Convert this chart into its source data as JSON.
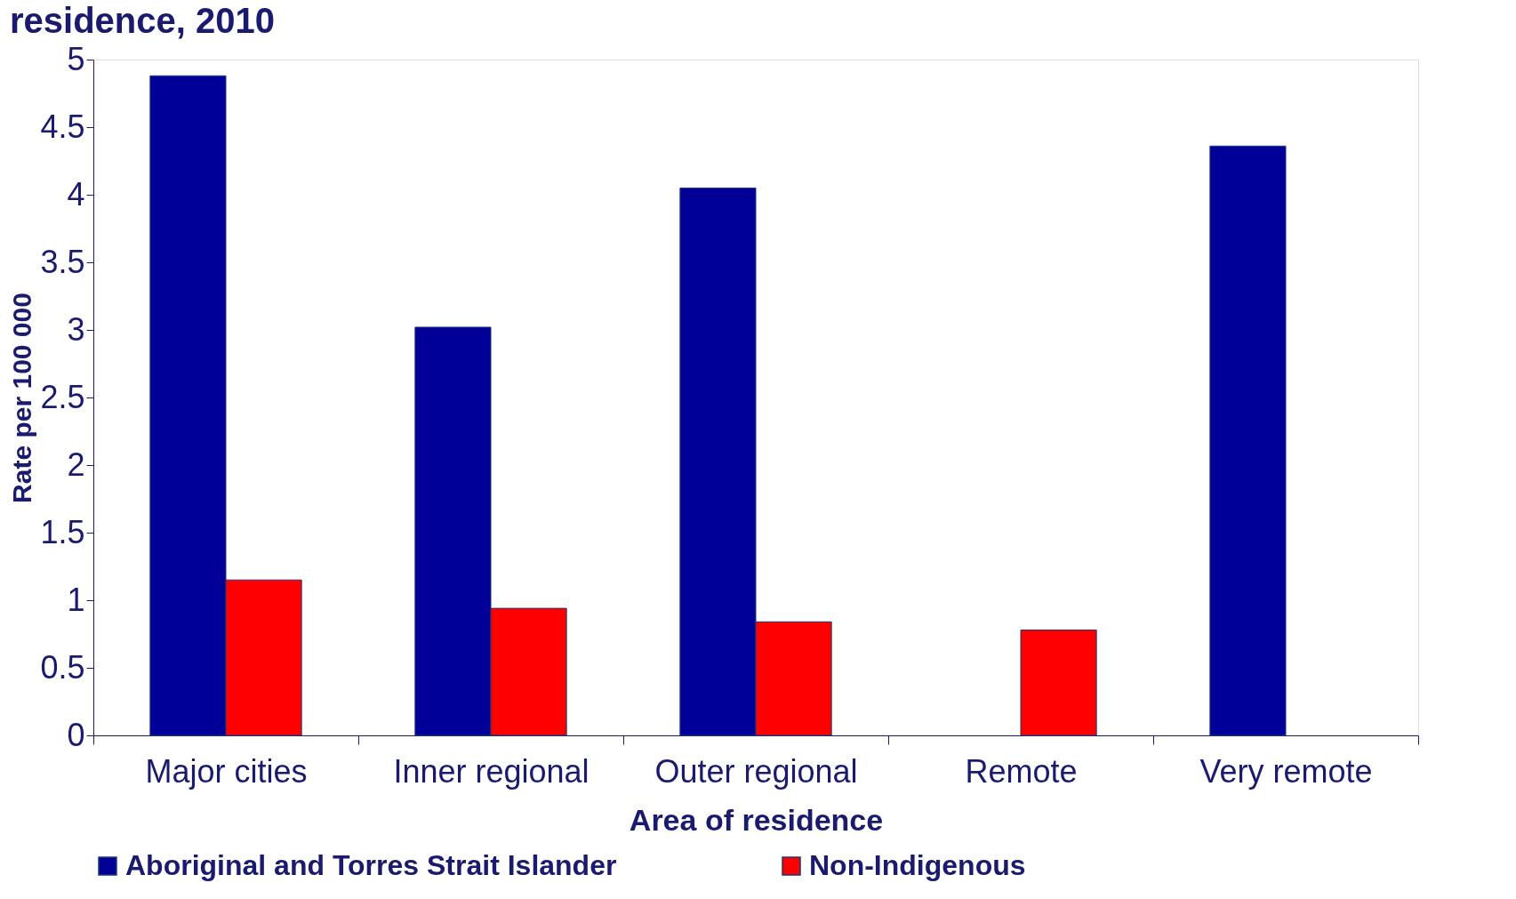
{
  "chart_data": {
    "type": "bar",
    "title": "residence, 2010",
    "xlabel": "Area of residence",
    "ylabel": "Rate per 100 000",
    "categories": [
      "Major cities",
      "Inner regional",
      "Outer regional",
      "Remote",
      "Very remote"
    ],
    "series": [
      {
        "name": "Aboriginal and Torres Strait Islander",
        "color": "#000099",
        "values": [
          4.88,
          3.02,
          4.05,
          null,
          4.36
        ]
      },
      {
        "name": "Non-Indigenous",
        "color": "#ff0000",
        "values": [
          1.15,
          0.94,
          0.84,
          0.78,
          null
        ]
      }
    ],
    "ylim": [
      0,
      5
    ],
    "yticks": [
      0,
      0.5,
      1,
      1.5,
      2,
      2.5,
      3,
      3.5,
      4,
      4.5,
      5
    ],
    "grid": false,
    "legend": "bottom"
  }
}
